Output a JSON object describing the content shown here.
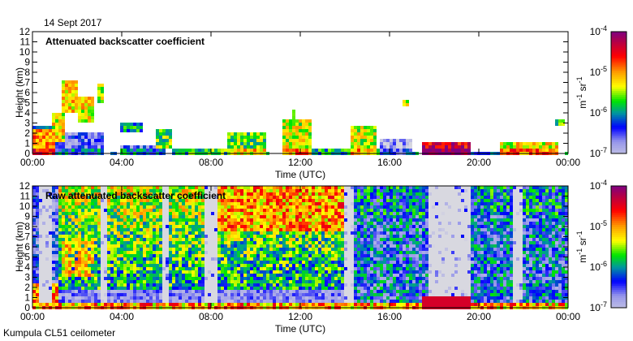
{
  "date_label": "14 Sept 2017",
  "footer": "Kumpula CL51 ceilometer",
  "chart_data": [
    {
      "type": "heatmap",
      "title": "Attenuated backscatter coefficient",
      "xlabel": "Time (UTC)",
      "ylabel": "Height (km)",
      "xlim_hours": [
        0,
        24
      ],
      "ylim": [
        0,
        12
      ],
      "x_ticks": [
        "00:00",
        "04:00",
        "08:00",
        "12:00",
        "16:00",
        "20:00",
        "00:00"
      ],
      "y_ticks": [
        "0",
        "1",
        "2",
        "3",
        "4",
        "5",
        "6",
        "7",
        "8",
        "9",
        "10",
        "11",
        "12"
      ],
      "colorbar": {
        "unit": "m-1 sr-1",
        "unit_parts": [
          "m",
          "-1",
          " sr",
          "-1"
        ],
        "scale": "log",
        "range": [
          1e-07,
          0.0001
        ],
        "tick_base": "10",
        "tick_exponents": [
          "-4",
          "-5",
          "-6",
          "-7"
        ]
      },
      "features_log10": [
        {
          "h": [
            0,
            1.0
          ],
          "km": [
            0,
            2.5
          ],
          "v": -5.0
        },
        {
          "h": [
            0,
            1.0
          ],
          "km": [
            2.5,
            2.8
          ],
          "v": -6.4
        },
        {
          "h": [
            1.0,
            3.2
          ],
          "km": [
            0,
            2.0
          ],
          "v": -6.6
        },
        {
          "h": [
            0.9,
            1.4
          ],
          "km": [
            1.2,
            4.0
          ],
          "v": -5.3
        },
        {
          "h": [
            1.3,
            2.0
          ],
          "km": [
            4.0,
            7.2
          ],
          "v": -5.2
        },
        {
          "h": [
            2.0,
            2.8
          ],
          "km": [
            3.0,
            5.5
          ],
          "v": -5.3
        },
        {
          "h": [
            2.9,
            3.2
          ],
          "km": [
            5.0,
            7.0
          ],
          "v": -5.5
        },
        {
          "h": [
            3.9,
            5.0
          ],
          "km": [
            2.0,
            3.1
          ],
          "v": -6.0
        },
        {
          "h": [
            4.0,
            6.0
          ],
          "km": [
            0,
            0.9
          ],
          "v": -6.5
        },
        {
          "h": [
            5.6,
            6.2
          ],
          "km": [
            0.5,
            2.3
          ],
          "v": -5.6
        },
        {
          "h": [
            6.2,
            9.0
          ],
          "km": [
            0,
            0.6
          ],
          "v": -6.2
        },
        {
          "h": [
            8.7,
            10.5
          ],
          "km": [
            0,
            2.0
          ],
          "v": -5.6
        },
        {
          "h": [
            11.2,
            12.5
          ],
          "km": [
            0,
            3.3
          ],
          "v": -5.4
        },
        {
          "h": [
            11.6,
            11.8
          ],
          "km": [
            3.3,
            4.3
          ],
          "v": -5.5
        },
        {
          "h": [
            12.5,
            15.5
          ],
          "km": [
            0,
            0.5
          ],
          "v": -6.3
        },
        {
          "h": [
            14.2,
            15.4
          ],
          "km": [
            0,
            2.6
          ],
          "v": -5.4
        },
        {
          "h": [
            15.5,
            17.0
          ],
          "km": [
            0,
            1.5
          ],
          "v": -6.8
        },
        {
          "h": [
            16.6,
            16.8
          ],
          "km": [
            4.6,
            5.4
          ],
          "v": -5.3
        },
        {
          "h": [
            17.5,
            19.6
          ],
          "km": [
            0,
            1.0
          ],
          "v": -4.4
        },
        {
          "h": [
            18.55,
            18.65
          ],
          "km": [
            1.0,
            6.0
          ],
          "v": -6.6
        },
        {
          "h": [
            19.6,
            21.0
          ],
          "km": [
            0,
            0.3
          ],
          "v": -6.4
        },
        {
          "h": [
            21.0,
            23.6
          ],
          "km": [
            0,
            1.1
          ],
          "v": -5.3
        },
        {
          "h": [
            23.4,
            23.8
          ],
          "km": [
            2.8,
            3.3
          ],
          "v": -5.6
        }
      ]
    },
    {
      "type": "heatmap",
      "title": "Raw attenuated backscatter coefficient",
      "xlabel": "Time (UTC)",
      "ylabel": "Height (km)",
      "xlim_hours": [
        0,
        24
      ],
      "ylim": [
        0,
        12
      ],
      "x_ticks": [
        "00:00",
        "04:00",
        "08:00",
        "12:00",
        "16:00",
        "20:00",
        "00:00"
      ],
      "y_ticks": [
        "0",
        "1",
        "2",
        "3",
        "4",
        "5",
        "6",
        "7",
        "8",
        "9",
        "10",
        "11",
        "12"
      ],
      "colorbar": {
        "unit": "m-1 sr-1",
        "unit_parts": [
          "m",
          "-1",
          " sr",
          "-1"
        ],
        "scale": "log",
        "range": [
          1e-07,
          0.0001
        ],
        "tick_base": "10",
        "tick_exponents": [
          "-4",
          "-5",
          "-6",
          "-7"
        ]
      },
      "low_signal_bands_hours": [
        [
          0.3,
          0.9
        ],
        [
          3.0,
          3.3
        ],
        [
          5.8,
          6.1
        ],
        [
          7.7,
          8.3
        ],
        [
          13.9,
          14.4
        ],
        [
          17.7,
          19.7
        ],
        [
          21.6,
          21.9
        ]
      ],
      "background_log10": {
        "morning_upper": -5.7,
        "midday_upper": -5.0,
        "afternoon": -6.3
      }
    }
  ]
}
